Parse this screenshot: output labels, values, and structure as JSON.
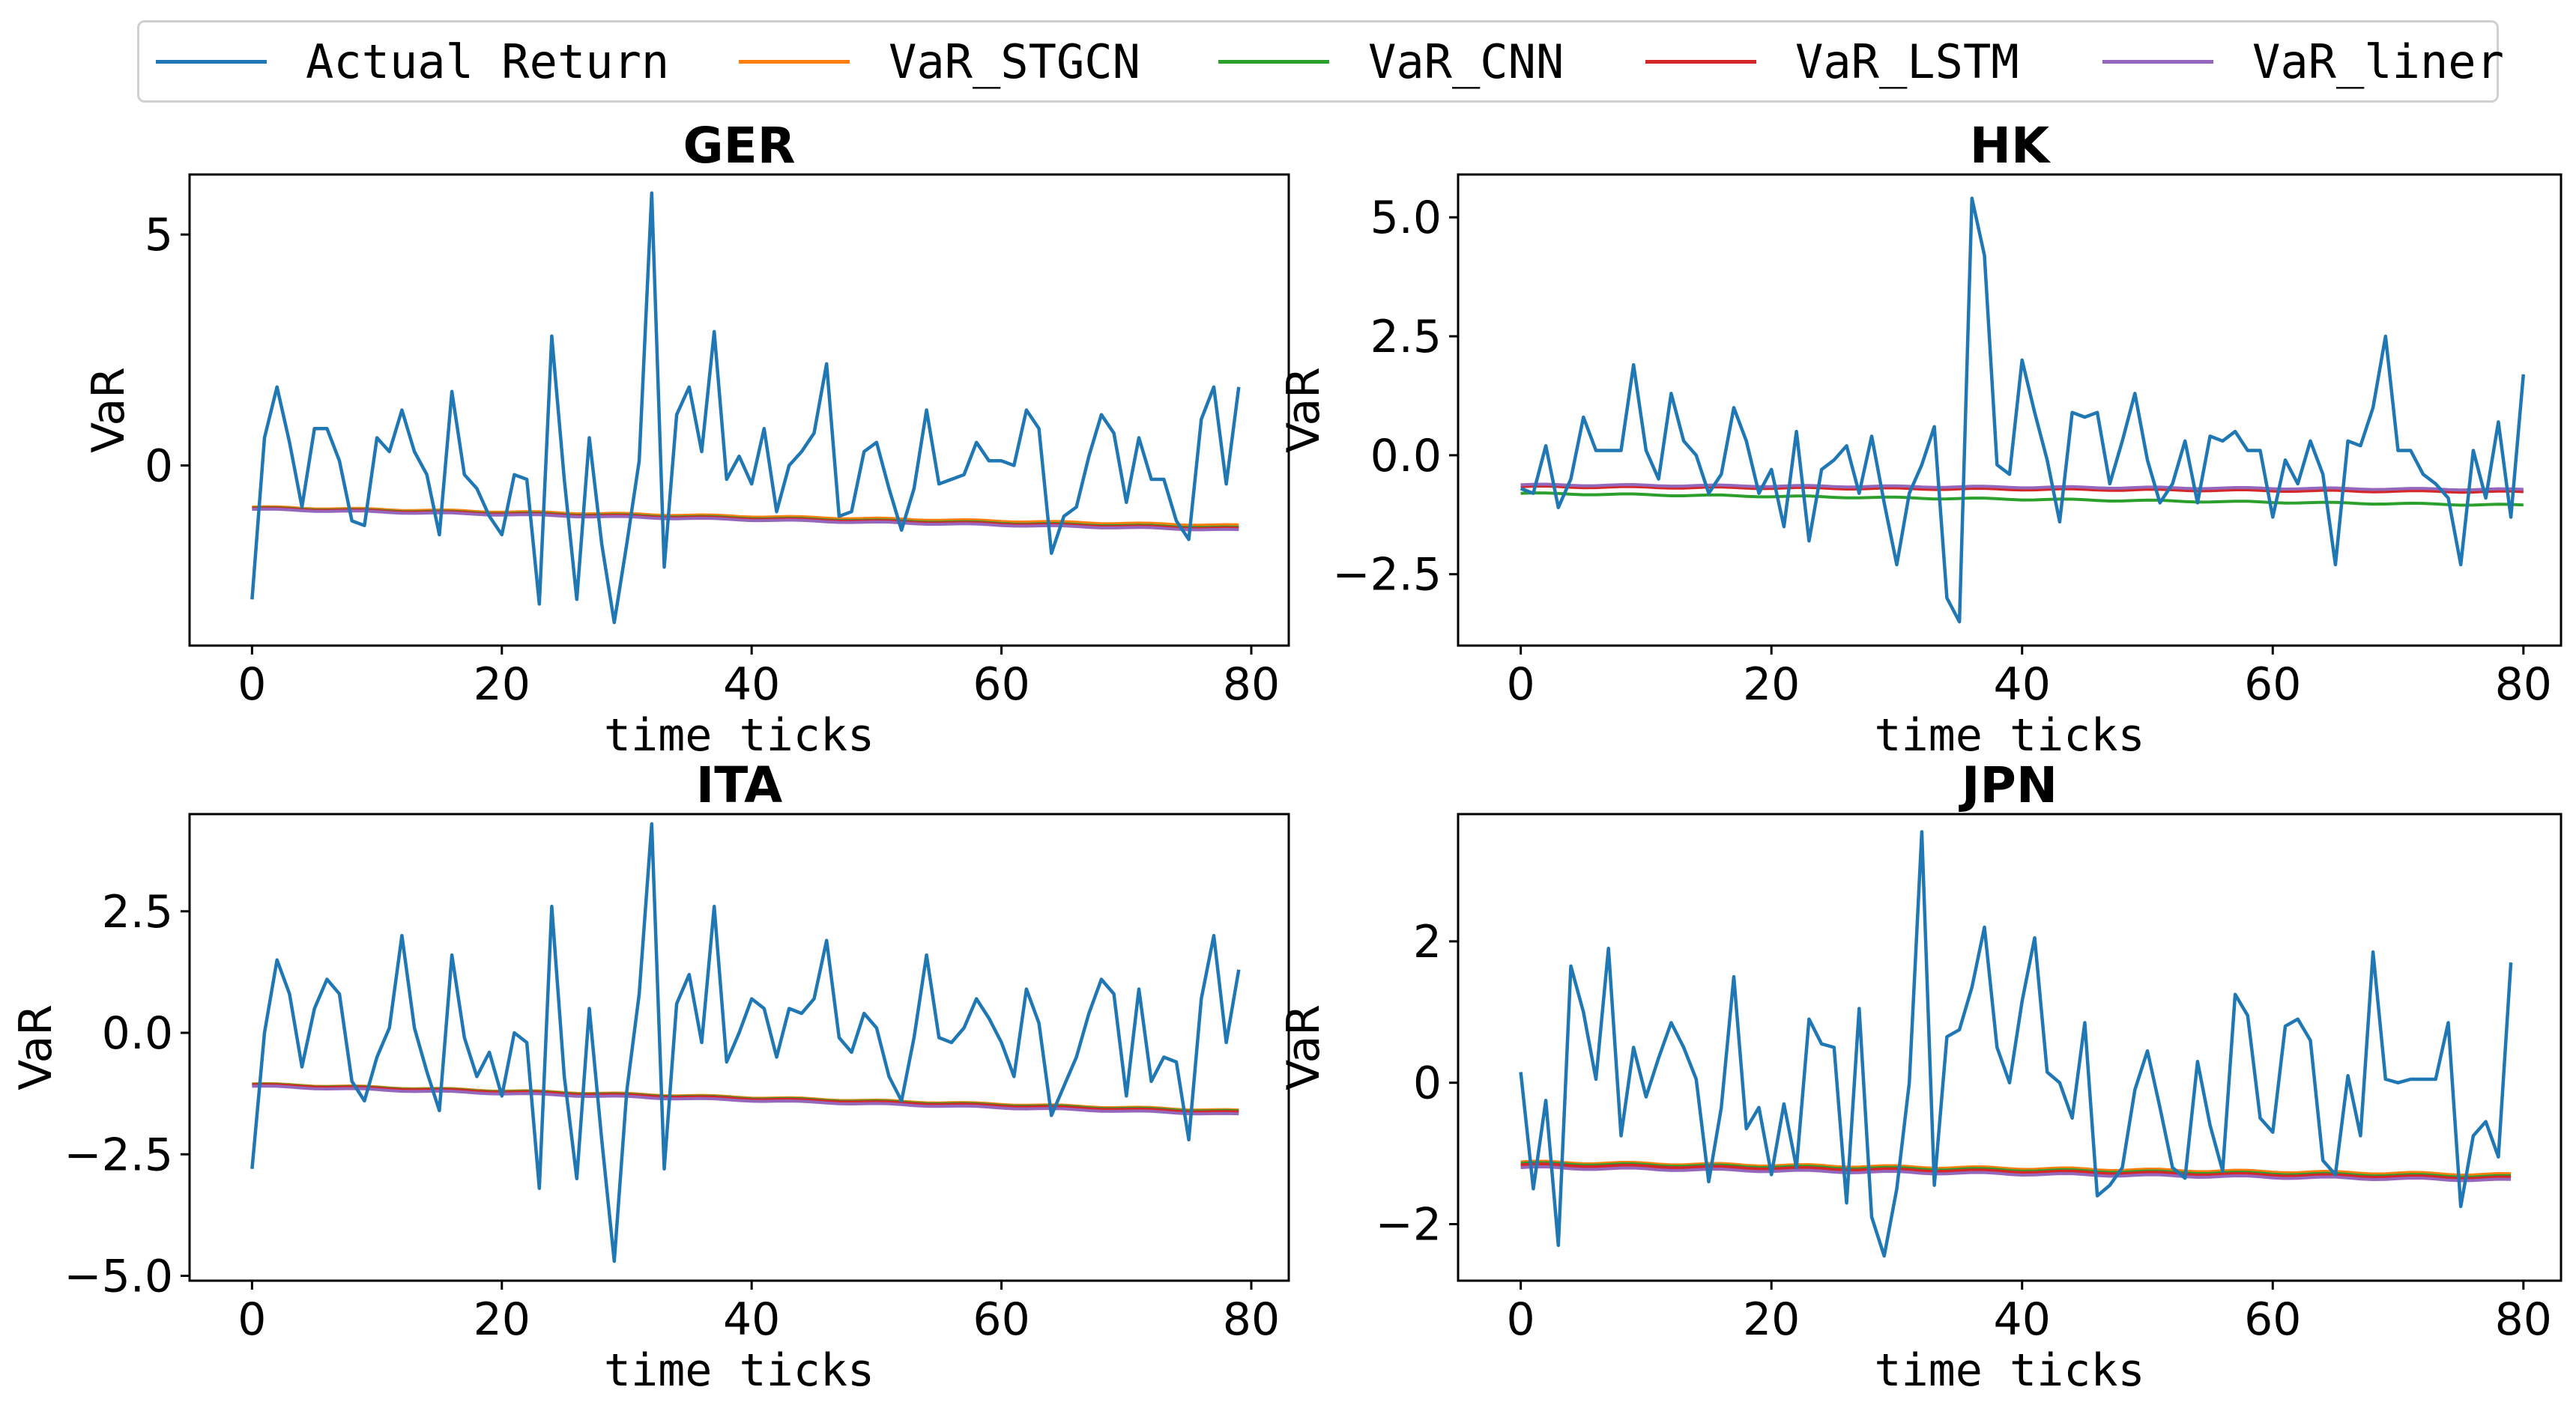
{
  "chart_data": {
    "type": "line",
    "legend": {
      "position": "top-center",
      "entries": [
        {
          "name": "Actual Return",
          "color": "#1f77b4"
        },
        {
          "name": "VaR_STGCN",
          "color": "#ff7f0e"
        },
        {
          "name": "VaR_CNN",
          "color": "#2ca02c"
        },
        {
          "name": "VaR_LSTM",
          "color": "#d62728"
        },
        {
          "name": "VaR_liner",
          "color": "#9467bd"
        }
      ]
    },
    "panels": [
      {
        "title": "GER",
        "xlabel": "time ticks",
        "ylabel": "VaR",
        "xlim": [
          -5,
          83
        ],
        "ylim": [
          -3.9,
          6.3
        ],
        "xticks": [
          0,
          20,
          40,
          60,
          80
        ],
        "yticks": [
          0,
          5
        ],
        "ytick_labels": [
          "0",
          "5"
        ],
        "actual": [
          -2.9,
          0.6,
          1.7,
          0.5,
          -0.9,
          0.8,
          0.8,
          0.1,
          -1.2,
          -1.3,
          0.6,
          0.3,
          1.2,
          0.3,
          -0.2,
          -1.5,
          1.6,
          -0.2,
          -0.5,
          -1.1,
          -1.5,
          -0.2,
          -0.3,
          -3.0,
          2.8,
          -0.3,
          -2.9,
          0.6,
          -1.7,
          -3.4,
          -1.7,
          0.1,
          5.9,
          -2.2,
          1.1,
          1.7,
          0.3,
          2.9,
          -0.3,
          0.2,
          -0.4,
          0.8,
          -1.0,
          0.0,
          0.3,
          0.7,
          2.2,
          -1.1,
          -1.0,
          0.3,
          0.5,
          -0.5,
          -1.4,
          -0.5,
          1.2,
          -0.4,
          -0.3,
          -0.2,
          0.5,
          0.1,
          0.1,
          0.0,
          1.2,
          0.8,
          -1.9,
          -1.1,
          -0.9,
          0.2,
          1.1,
          0.7,
          -0.8,
          0.6,
          -0.3,
          -0.3,
          -1.2,
          -1.6,
          1.0,
          1.7,
          -0.4,
          1.7
        ],
        "var": {
          "VaR_STGCN": {
            "start": -0.9,
            "end": -1.3
          },
          "VaR_CNN": {
            "start": -0.92,
            "end": -1.35
          },
          "VaR_LSTM": {
            "start": -0.93,
            "end": -1.37
          },
          "VaR_liner": {
            "start": -0.95,
            "end": -1.4
          }
        }
      },
      {
        "title": "HK",
        "xlabel": "time ticks",
        "ylabel": "VaR",
        "xlim": [
          -5,
          83
        ],
        "ylim": [
          -4.0,
          5.9
        ],
        "xticks": [
          0,
          20,
          40,
          60,
          80
        ],
        "yticks": [
          -2.5,
          0.0,
          2.5,
          5.0
        ],
        "ytick_labels": [
          "−2.5",
          "0.0",
          "2.5",
          "5.0"
        ],
        "actual": [
          -0.7,
          -0.8,
          0.2,
          -1.1,
          -0.5,
          0.8,
          0.1,
          0.1,
          0.1,
          1.9,
          0.1,
          -0.5,
          1.3,
          0.3,
          0.0,
          -0.8,
          -0.4,
          1.0,
          0.3,
          -0.8,
          -0.3,
          -1.5,
          0.5,
          -1.8,
          -0.3,
          -0.1,
          0.2,
          -0.8,
          0.4,
          -1.0,
          -2.3,
          -0.8,
          -0.2,
          0.6,
          -3.0,
          -3.5,
          5.4,
          4.2,
          -0.2,
          -0.4,
          2.0,
          0.9,
          -0.1,
          -1.4,
          0.9,
          0.8,
          0.9,
          -0.6,
          0.3,
          1.3,
          -0.1,
          -1.0,
          -0.6,
          0.3,
          -1.0,
          0.4,
          0.3,
          0.5,
          0.1,
          0.1,
          -1.3,
          -0.1,
          -0.6,
          0.3,
          -0.4,
          -2.3,
          0.3,
          0.2,
          1.0,
          2.5,
          0.1,
          0.1,
          -0.4,
          -0.6,
          -0.9,
          -2.3,
          0.1,
          -0.9,
          0.7,
          -1.3,
          1.7
        ],
        "var": {
          "VaR_STGCN": {
            "start": -0.65,
            "end": -0.75
          },
          "VaR_CNN": {
            "start": -0.8,
            "end": -1.05
          },
          "VaR_LSTM": {
            "start": -0.66,
            "end": -0.77
          },
          "VaR_liner": {
            "start": -0.62,
            "end": -0.72
          }
        }
      },
      {
        "title": "ITA",
        "xlabel": "time ticks",
        "ylabel": "VaR",
        "xlim": [
          -5,
          83
        ],
        "ylim": [
          -5.1,
          4.5
        ],
        "xticks": [
          0,
          20,
          40,
          60,
          80
        ],
        "yticks": [
          -5.0,
          -2.5,
          0.0,
          2.5
        ],
        "ytick_labels": [
          "−5.0",
          "−2.5",
          "0.0",
          "2.5"
        ],
        "actual": [
          -2.8,
          0.0,
          1.5,
          0.8,
          -0.7,
          0.5,
          1.1,
          0.8,
          -1.0,
          -1.4,
          -0.5,
          0.1,
          2.0,
          0.1,
          -0.8,
          -1.6,
          1.6,
          -0.1,
          -0.9,
          -0.4,
          -1.3,
          0.0,
          -0.2,
          -3.2,
          2.6,
          -0.9,
          -3.0,
          0.5,
          -2.2,
          -4.7,
          -1.2,
          0.8,
          4.3,
          -2.8,
          0.6,
          1.2,
          -0.2,
          2.6,
          -0.6,
          0.0,
          0.7,
          0.5,
          -0.5,
          0.5,
          0.4,
          0.7,
          1.9,
          -0.1,
          -0.4,
          0.4,
          0.1,
          -0.9,
          -1.4,
          -0.1,
          1.6,
          -0.1,
          -0.2,
          0.1,
          0.7,
          0.3,
          -0.2,
          -0.9,
          0.9,
          0.2,
          -1.7,
          -1.1,
          -0.5,
          0.4,
          1.1,
          0.8,
          -1.3,
          0.9,
          -1.0,
          -0.5,
          -0.6,
          -2.2,
          0.7,
          2.0,
          -0.2,
          1.3
        ],
        "var": {
          "VaR_STGCN": {
            "start": -1.05,
            "end": -1.6
          },
          "VaR_CNN": {
            "start": -1.06,
            "end": -1.62
          },
          "VaR_LSTM": {
            "start": -1.07,
            "end": -1.64
          },
          "VaR_liner": {
            "start": -1.1,
            "end": -1.68
          }
        }
      },
      {
        "title": "JPN",
        "xlabel": "time ticks",
        "ylabel": "VaR",
        "xlim": [
          -5,
          83
        ],
        "ylim": [
          -2.8,
          3.8
        ],
        "xticks": [
          0,
          20,
          40,
          60,
          80
        ],
        "yticks": [
          -2,
          0,
          2
        ],
        "ytick_labels": [
          "−2",
          "0",
          "2"
        ],
        "actual": [
          0.15,
          -1.5,
          -0.25,
          -2.3,
          1.65,
          1.0,
          0.05,
          1.9,
          -0.75,
          0.5,
          -0.2,
          0.35,
          0.85,
          0.5,
          0.05,
          -1.4,
          -0.35,
          1.5,
          -0.65,
          -0.35,
          -1.3,
          -0.3,
          -1.2,
          0.9,
          0.55,
          0.5,
          -1.7,
          1.05,
          -1.9,
          -2.45,
          -1.5,
          0.0,
          3.55,
          -1.45,
          0.65,
          0.75,
          1.35,
          2.2,
          0.5,
          0.0,
          1.15,
          2.05,
          0.15,
          0.0,
          -0.5,
          0.85,
          -1.6,
          -1.45,
          -1.2,
          -0.1,
          0.45,
          -0.35,
          -1.2,
          -1.35,
          0.3,
          -0.6,
          -1.25,
          1.25,
          0.95,
          -0.5,
          -0.7,
          0.8,
          0.9,
          0.6,
          -1.1,
          -1.3,
          0.1,
          -0.75,
          1.85,
          0.05,
          0.0,
          0.05,
          0.05,
          0.05,
          0.85,
          -1.75,
          -0.75,
          -0.55,
          -1.05,
          1.7
        ],
        "var": {
          "VaR_STGCN": {
            "start": -1.12,
            "end": -1.3
          },
          "VaR_CNN": {
            "start": -1.14,
            "end": -1.33
          },
          "VaR_LSTM": {
            "start": -1.16,
            "end": -1.35
          },
          "VaR_liner": {
            "start": -1.2,
            "end": -1.38
          }
        }
      }
    ]
  }
}
